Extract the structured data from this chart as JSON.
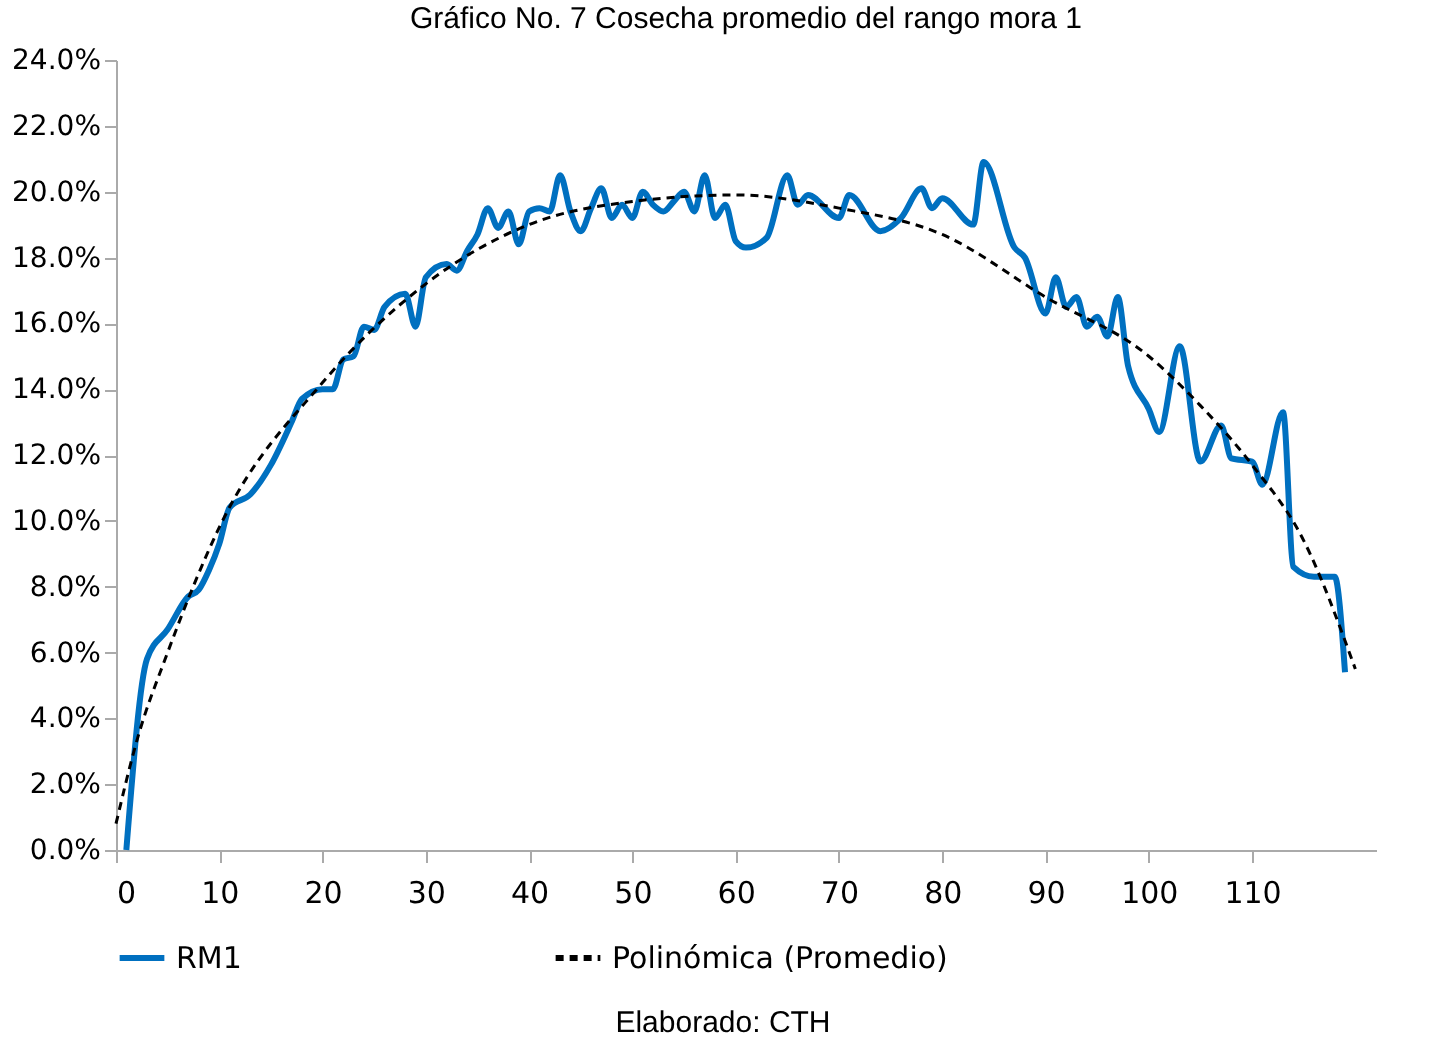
{
  "chart_data": {
    "type": "line",
    "title": "Gráfico No. 7 Cosecha promedio del rango mora 1",
    "annotations": [
      "Elaborado: CTH"
    ],
    "xlim": [
      0,
      122
    ],
    "xticks": [
      0,
      10,
      20,
      30,
      40,
      50,
      60,
      70,
      80,
      90,
      100,
      110
    ],
    "ylim": [
      0,
      24
    ],
    "yticks": [
      {
        "value": 0,
        "label": "0.0%"
      },
      {
        "value": 2,
        "label": "2.0%"
      },
      {
        "value": 4,
        "label": "4.0%"
      },
      {
        "value": 6,
        "label": "6.0%"
      },
      {
        "value": 8,
        "label": "8.0%"
      },
      {
        "value": 10,
        "label": "10.0%"
      },
      {
        "value": 12,
        "label": "12.0%"
      },
      {
        "value": 14,
        "label": "14.0%"
      },
      {
        "value": 16,
        "label": "16.0%"
      },
      {
        "value": 18,
        "label": "18.0%"
      },
      {
        "value": 20,
        "label": "20.0%"
      },
      {
        "value": 22,
        "label": "22.0%"
      },
      {
        "value": 24,
        "label": "24.0%"
      }
    ],
    "grid": false,
    "legend": "bottom",
    "series": [
      {
        "name": "RM1",
        "color": "#0070c0",
        "line_style": "solid",
        "x": [
          1,
          3,
          5,
          7,
          8,
          9,
          10,
          11,
          13,
          15,
          17,
          18,
          20,
          21,
          22,
          23,
          24,
          25,
          26,
          28,
          29,
          30,
          32,
          33,
          34,
          35,
          36,
          37,
          38,
          39,
          40,
          41,
          42,
          43,
          44,
          45,
          46,
          47,
          48,
          49,
          50,
          51,
          52,
          53,
          54,
          55,
          56,
          57,
          58,
          59,
          60,
          61,
          63,
          65,
          66,
          67,
          70,
          71,
          74,
          76,
          78,
          79,
          80,
          83,
          84,
          87,
          88,
          90,
          91,
          92,
          93,
          94,
          95,
          96,
          97,
          98,
          100,
          101,
          103,
          105,
          107,
          108,
          110,
          111,
          113,
          114,
          116,
          118,
          119
        ],
        "values": [
          0,
          5.8,
          6.7,
          7.7,
          7.9,
          8.5,
          9.3,
          10.4,
          10.8,
          11.7,
          13.0,
          13.7,
          14.0,
          14.0,
          14.9,
          15.0,
          15.9,
          15.8,
          16.5,
          16.9,
          15.9,
          17.4,
          17.8,
          17.6,
          18.2,
          18.7,
          19.5,
          18.9,
          19.4,
          18.4,
          19.4,
          19.5,
          19.4,
          20.5,
          19.4,
          18.8,
          19.5,
          20.1,
          19.2,
          19.6,
          19.2,
          20.0,
          19.6,
          19.4,
          19.7,
          20.0,
          19.4,
          20.5,
          19.2,
          19.6,
          18.5,
          18.3,
          18.6,
          20.5,
          19.6,
          19.9,
          19.2,
          19.9,
          18.8,
          19.2,
          20.1,
          19.5,
          19.8,
          19.0,
          20.9,
          18.3,
          18.0,
          16.3,
          17.4,
          16.5,
          16.8,
          15.9,
          16.2,
          15.6,
          16.8,
          14.7,
          13.4,
          12.7,
          15.3,
          11.8,
          12.9,
          11.9,
          11.8,
          11.1,
          13.3,
          8.6,
          8.3,
          8.3,
          5.4
        ]
      },
      {
        "name": "Polinómica (Promedio)",
        "color": "#000000",
        "line_style": "dashed",
        "x": [
          0,
          2,
          5,
          10,
          20,
          30,
          40,
          50,
          60,
          70,
          80,
          90,
          100,
          105,
          110,
          115,
          120
        ],
        "values": [
          0.8,
          3.3,
          6.0,
          9.8,
          14.2,
          17.2,
          19.0,
          19.7,
          19.9,
          19.5,
          18.7,
          16.8,
          15.0,
          13.5,
          11.7,
          9.4,
          5.5
        ]
      }
    ]
  }
}
